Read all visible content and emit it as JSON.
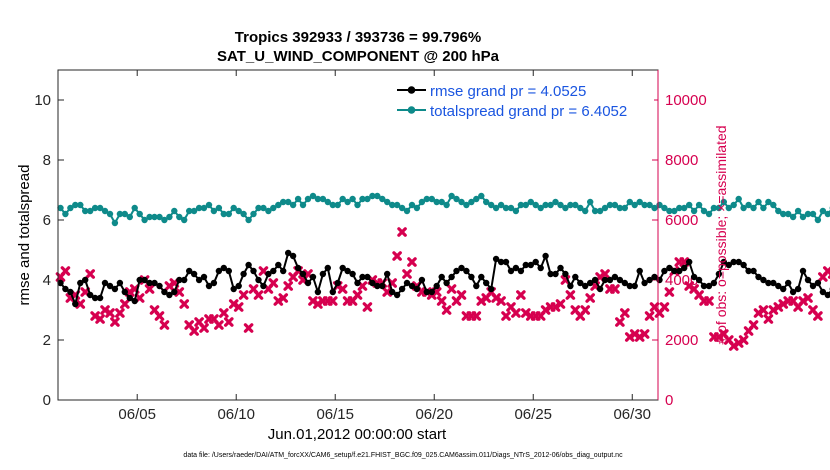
{
  "chart_data": {
    "type": "line",
    "title_line1": "Tropics 392933 / 393736 = 99.796%",
    "title_line2": "SAT_U_WIND_COMPONENT @ 200 hPa",
    "xlabel": "Jun.01,2012 00:00:00 start",
    "ylabel_left": "rmse and totalspread",
    "ylabel_right": "# of obs: o=possible; ×=assimilated",
    "footer": "data file: /Users/raeder/DAI/ATM_forcXX/CAM6_setup/f.e21.FHIST_BGC.f09_025.CAM6assim.011/Diags_NTrS_2012-06/obs_diag_output.nc",
    "xlim": [
      1,
      31.3
    ],
    "ylim_left": [
      0,
      11
    ],
    "ylim_right": [
      0,
      11000
    ],
    "x_ticks": [
      5,
      10,
      15,
      20,
      25,
      30
    ],
    "x_tick_labels": [
      "06/05",
      "06/10",
      "06/15",
      "06/20",
      "06/25",
      "06/30"
    ],
    "y_left_ticks": [
      0,
      2,
      4,
      6,
      8,
      10
    ],
    "y_left_tick_labels": [
      "0",
      "2",
      "4",
      "6",
      "8",
      "10"
    ],
    "y_right_ticks": [
      0,
      2000,
      4000,
      6000,
      8000,
      10000
    ],
    "y_right_tick_labels": [
      "0",
      "2000",
      "4000",
      "6000",
      "8000",
      "10000"
    ],
    "x_start": 1.125,
    "x_step": 0.25,
    "series": [
      {
        "name": "rmse",
        "legend_label": "rmse grand pr = 4.0525",
        "color": "#000000",
        "axis": "left",
        "values": [
          3.9,
          3.7,
          3.6,
          3.2,
          3.9,
          4.0,
          3.5,
          3.4,
          3.4,
          3.9,
          3.8,
          3.7,
          3.9,
          3.6,
          3.4,
          3.3,
          4.0,
          4.0,
          3.9,
          3.9,
          3.8,
          3.6,
          3.5,
          3.6,
          4.0,
          4.0,
          4.3,
          4.2,
          4.0,
          4.1,
          3.8,
          3.9,
          4.3,
          4.4,
          4.3,
          3.7,
          3.8,
          4.2,
          4.5,
          4.3,
          4.0,
          3.8,
          4.2,
          4.3,
          4.5,
          4.3,
          4.9,
          4.8,
          4.4,
          4.2,
          3.9,
          4.1,
          3.6,
          4.2,
          4.4,
          3.6,
          3.9,
          4.4,
          4.3,
          4.2,
          3.9,
          4.1,
          4.1,
          3.9,
          3.8,
          3.8,
          4.2,
          3.6,
          3.5,
          3.7,
          3.9,
          3.8,
          3.7,
          4.0,
          3.6,
          3.6,
          3.8,
          4.1,
          3.9,
          4.1,
          4.3,
          4.4,
          4.3,
          4.1,
          3.8,
          4.1,
          3.9,
          3.7,
          4.7,
          4.6,
          4.6,
          4.3,
          4.4,
          4.3,
          4.5,
          4.5,
          4.6,
          4.4,
          4.8,
          4.2,
          4.2,
          4.4,
          4.2,
          3.8,
          4.1,
          3.9,
          3.8,
          3.9,
          4.0,
          3.7,
          4.0,
          4.0,
          4.1,
          4.0,
          3.9,
          3.8,
          3.8,
          4.3,
          3.9,
          4.0,
          4.1,
          4.0,
          4.3,
          4.4,
          4.3,
          4.3,
          4.4,
          4.6,
          4.1,
          4.0,
          3.8,
          3.8,
          3.9,
          4.2,
          4.6,
          4.5,
          4.6,
          4.6,
          4.5,
          4.3,
          4.3,
          4.1,
          4.0,
          3.9,
          3.9,
          3.8,
          3.7,
          3.9,
          3.6,
          3.7,
          4.3,
          4.0,
          3.8,
          3.9,
          3.6,
          3.5,
          3.7,
          3.8
        ]
      },
      {
        "name": "totalspread",
        "legend_label": "totalspread grand pr = 6.4052",
        "color": "#0e8a8a",
        "axis": "left",
        "values": [
          6.4,
          6.2,
          6.4,
          6.5,
          6.5,
          6.3,
          6.3,
          6.4,
          6.4,
          6.3,
          6.2,
          5.9,
          6.2,
          6.2,
          6.1,
          6.4,
          6.2,
          6.0,
          6.1,
          6.1,
          6.1,
          6.0,
          6.1,
          6.3,
          6.1,
          6.0,
          6.3,
          6.3,
          6.4,
          6.4,
          6.5,
          6.3,
          6.4,
          6.2,
          6.2,
          6.4,
          6.3,
          6.2,
          6.0,
          6.2,
          6.4,
          6.4,
          6.3,
          6.4,
          6.5,
          6.6,
          6.6,
          6.5,
          6.7,
          6.5,
          6.7,
          6.8,
          6.7,
          6.7,
          6.6,
          6.5,
          6.5,
          6.7,
          6.6,
          6.7,
          6.5,
          6.7,
          6.7,
          6.8,
          6.8,
          6.7,
          6.6,
          6.5,
          6.5,
          6.4,
          6.3,
          6.5,
          6.4,
          6.6,
          6.7,
          6.7,
          6.6,
          6.6,
          6.5,
          6.8,
          6.7,
          6.6,
          6.5,
          6.6,
          6.7,
          6.8,
          6.6,
          6.5,
          6.4,
          6.5,
          6.4,
          6.4,
          6.3,
          6.5,
          6.5,
          6.6,
          6.5,
          6.4,
          6.5,
          6.5,
          6.6,
          6.5,
          6.4,
          6.5,
          6.5,
          6.4,
          6.3,
          6.6,
          6.3,
          6.3,
          6.4,
          6.5,
          6.5,
          6.4,
          6.4,
          6.6,
          6.5,
          6.6,
          6.5,
          6.5,
          6.4,
          6.5,
          6.4,
          6.3,
          6.3,
          6.4,
          6.4,
          6.5,
          6.3,
          6.5,
          6.3,
          6.2,
          6.4,
          6.4,
          6.6,
          6.4,
          6.5,
          6.7,
          6.4,
          6.5,
          6.4,
          6.6,
          6.4,
          6.6,
          6.5,
          6.3,
          6.2,
          6.2,
          6.1,
          6.3,
          6.1,
          6.2,
          6.2,
          6.0,
          6.3,
          6.2,
          6.4,
          6.1,
          6.2,
          6.3
        ]
      },
      {
        "name": "obs_assimilated",
        "legend_label": "",
        "color": "#d6004f",
        "axis": "right",
        "values": [
          4100,
          4300,
          3400,
          3500,
          3200,
          3600,
          4200,
          2800,
          2700,
          3000,
          2900,
          2600,
          2900,
          3200,
          3600,
          3700,
          3400,
          4000,
          3700,
          3000,
          2800,
          2500,
          3800,
          3900,
          3600,
          3200,
          2500,
          2300,
          2600,
          2400,
          2700,
          2700,
          2500,
          2900,
          2600,
          3200,
          3100,
          3500,
          2400,
          3700,
          3500,
          4300,
          3700,
          3900,
          3300,
          3400,
          3800,
          4100,
          4300,
          4000,
          4200,
          3300,
          3200,
          3300,
          3300,
          3300,
          3800,
          3700,
          3300,
          3300,
          3500,
          3800,
          3100,
          4000,
          3900,
          3900,
          3600,
          3900,
          4800,
          5600,
          4200,
          4600,
          3800,
          3600,
          3600,
          3500,
          3600,
          3300,
          3000,
          3700,
          3300,
          3500,
          2800,
          2800,
          2800,
          3300,
          3400,
          3600,
          3400,
          3300,
          2800,
          3100,
          2900,
          3500,
          2900,
          2800,
          2800,
          2800,
          3000,
          3100,
          3100,
          3200,
          4000,
          3500,
          3000,
          2800,
          3000,
          3400,
          3800,
          4100,
          4200,
          3700,
          3700,
          2600,
          2900,
          2100,
          2200,
          2100,
          2200,
          2800,
          3100,
          2900,
          3100,
          3600,
          4300,
          4600,
          4600,
          3800,
          3700,
          3500,
          3300,
          3300,
          2100,
          2100,
          2200,
          2000,
          1800,
          1900,
          2000,
          2300,
          2500,
          2900,
          3000,
          2700,
          3000,
          3100,
          3200,
          3300,
          3300,
          3100,
          3300,
          3400,
          3000,
          2800,
          4100,
          4300,
          4200,
          0
        ]
      }
    ]
  }
}
